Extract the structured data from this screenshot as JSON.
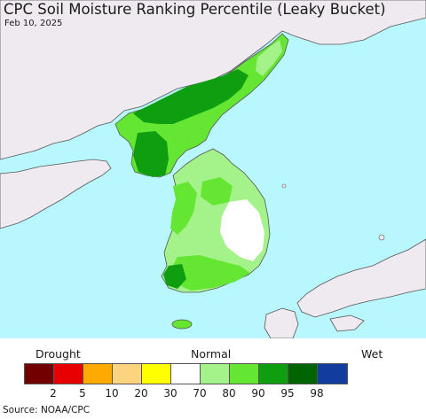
{
  "title": "CPC Soil Moisture Ranking Percentile (Leaky Bucket)",
  "date": "Feb 10, 2025",
  "legend": {
    "left_label": "Drought",
    "center_label": "Normal",
    "right_label": "Wet",
    "colors": [
      "#730000",
      "#e60000",
      "#ffaa00",
      "#fcd37f",
      "#ffff00",
      "#ffffff",
      "#a3f28a",
      "#64e632",
      "#0f9e0f",
      "#006400",
      "#123c9e"
    ],
    "ticks": [
      "2",
      "5",
      "10",
      "20",
      "30",
      "70",
      "80",
      "90",
      "95",
      "98"
    ]
  },
  "source": "Source: NOAA/CPC",
  "colors": {
    "ocean": "#b9f7ff",
    "land_outside": "#efeaef",
    "border": "#555555"
  }
}
